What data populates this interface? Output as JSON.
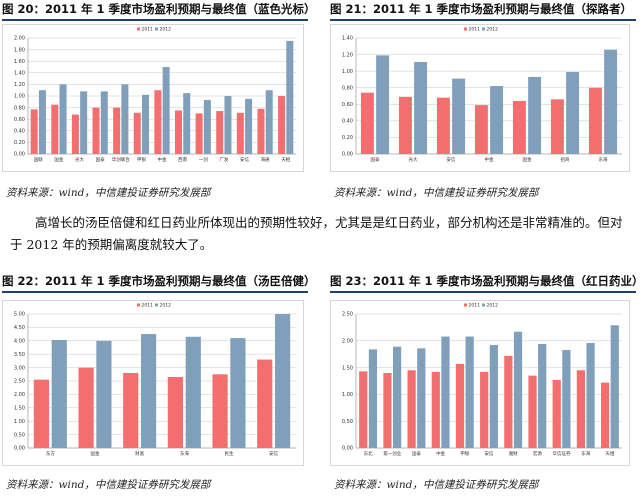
{
  "colors": {
    "predicted": "#f36f6f",
    "final": "#7f9fba",
    "rule": "#1f3f73",
    "grid": "#c8c8c8"
  },
  "paragraph": "高增长的汤臣倍健和红日药业所体现出的预期性较好，尤其是是红日药业，部分机构还是非常精准的。但对于 2012 年的预期偏离度就较大了。",
  "figures": [
    {
      "title": "图 20：2011 年 1 季度市场盈利预期与最终值（蓝色光标）",
      "source": "资料来源：wind，中信建投证券研究发展部"
    },
    {
      "title": "图 21：2011 年 1 季度市场盈利预期与最终值（探路者）",
      "source": "资料来源：wind，中信建投证券研究发展部"
    },
    {
      "title": "图 22：2011 年 1 季度市场盈利预期与最终值（汤臣倍健）",
      "source": "资料来源：wind，中信建投证券研究发展部"
    },
    {
      "title": "图 23：2011 年 1 季度市场盈利预期与最终值（红日药业）",
      "source": "资料来源：wind，中信建投证券研究发展部"
    }
  ],
  "chart_data": [
    {
      "type": "bar",
      "title": "图 20：2011 年 1 季度市场盈利预期与最终值（蓝色光标）",
      "categories": [
        "国联",
        "国金",
        "光大",
        "国泰",
        "华创联合",
        "申银",
        "中金",
        "西南",
        "一创",
        "广发",
        "安信",
        "海通",
        "天相"
      ],
      "series": [
        {
          "name": "2011",
          "values": [
            0.77,
            0.85,
            0.68,
            0.8,
            0.8,
            0.71,
            1.1,
            0.75,
            0.7,
            0.74,
            0.71,
            0.78,
            1.0
          ]
        },
        {
          "name": "2012",
          "values": [
            1.1,
            1.2,
            1.08,
            1.08,
            1.2,
            1.02,
            1.5,
            1.05,
            0.93,
            1.0,
            0.95,
            1.1,
            1.95
          ]
        }
      ],
      "yticks": [
        "0.00",
        "0.20",
        "0.40",
        "0.60",
        "0.80",
        "1.00",
        "1.20",
        "1.40",
        "1.60",
        "1.80",
        "2.00"
      ],
      "ylim": [
        0,
        2.0
      ],
      "grid": true,
      "legend": "top-center"
    },
    {
      "type": "bar",
      "title": "图 21：2011 年 1 季度市场盈利预期与最终值（探路者）",
      "categories": [
        "国泰",
        "光大",
        "安信",
        "中金",
        "国金",
        "招商",
        "东海"
      ],
      "series": [
        {
          "name": "2011",
          "values": [
            0.74,
            0.69,
            0.68,
            0.59,
            0.64,
            0.66,
            0.8
          ]
        },
        {
          "name": "2012",
          "values": [
            1.19,
            1.11,
            0.91,
            0.82,
            0.93,
            0.99,
            1.26
          ]
        }
      ],
      "yticks": [
        "0.00",
        "0.20",
        "0.40",
        "0.60",
        "0.80",
        "1.00",
        "1.20",
        "1.40"
      ],
      "ylim": [
        0,
        1.4
      ],
      "grid": true,
      "legend": "top-center"
    },
    {
      "type": "bar",
      "title": "图 22：2011 年 1 季度市场盈利预期与最终值（汤臣倍健）",
      "categories": [
        "东方",
        "国金",
        "财富",
        "东海",
        "民生",
        "安信"
      ],
      "series": [
        {
          "name": "2011",
          "values": [
            2.55,
            3.0,
            2.8,
            2.65,
            2.75,
            3.3
          ]
        },
        {
          "name": "2012",
          "values": [
            4.03,
            4.0,
            4.25,
            4.15,
            4.1,
            5.0
          ]
        }
      ],
      "yticks": [
        "0.00",
        "0.50",
        "1.00",
        "1.50",
        "2.00",
        "2.50",
        "3.00",
        "3.50",
        "4.00",
        "4.50",
        "5.00"
      ],
      "ylim": [
        0,
        5.0
      ],
      "grid": true,
      "legend": "top-center"
    },
    {
      "type": "bar",
      "title": "图 23：2011 年 1 季度市场盈利预期与最终值（红日药业）",
      "categories": [
        "东北",
        "第一创业",
        "国泰",
        "中金",
        "申银",
        "安信",
        "湘财",
        "宏源",
        "华信证券",
        "东海",
        "天相"
      ],
      "series": [
        {
          "name": "2011",
          "values": [
            1.43,
            1.4,
            1.45,
            1.42,
            1.57,
            1.42,
            1.72,
            1.35,
            1.27,
            1.45,
            1.22
          ]
        },
        {
          "name": "2012",
          "values": [
            1.84,
            1.89,
            1.86,
            2.08,
            2.08,
            1.92,
            2.17,
            1.94,
            1.83,
            1.96,
            2.29
          ]
        }
      ],
      "yticks": [
        "0.00",
        "0.50",
        "1.00",
        "1.50",
        "2.00",
        "2.50"
      ],
      "ylim": [
        0,
        2.5
      ],
      "grid": true,
      "legend": "top-center"
    }
  ]
}
